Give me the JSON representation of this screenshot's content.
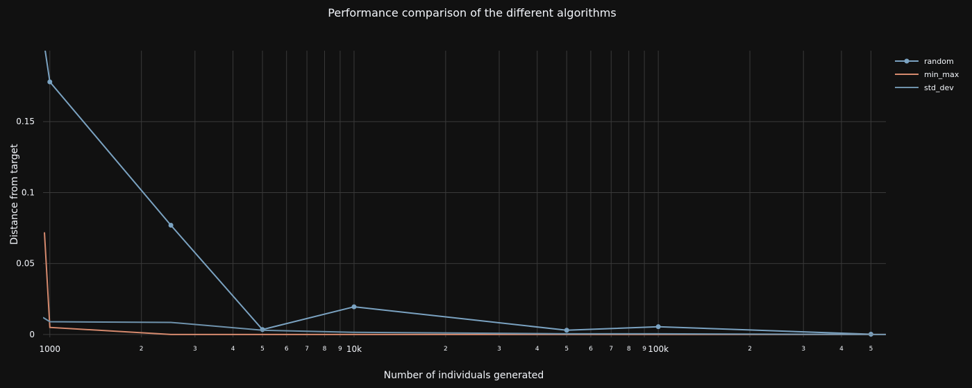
{
  "chart_data": {
    "type": "line",
    "title": "Performance comparison of the different algorithms",
    "xlabel": "Number of individuals generated",
    "ylabel": "Distance from target",
    "x_scale": "log",
    "xlim": [
      950,
      560000
    ],
    "ylim": [
      -0.002,
      0.2
    ],
    "grid": true,
    "legend_position": "top-right",
    "x_tick_labels": {
      "major": [
        {
          "value": 1000,
          "label": "1000"
        },
        {
          "value": 10000,
          "label": "10k"
        },
        {
          "value": 100000,
          "label": "100k"
        }
      ],
      "minor": [
        {
          "value": 2000,
          "label": "2"
        },
        {
          "value": 3000,
          "label": "3"
        },
        {
          "value": 4000,
          "label": "4"
        },
        {
          "value": 5000,
          "label": "5"
        },
        {
          "value": 6000,
          "label": "6"
        },
        {
          "value": 7000,
          "label": "7"
        },
        {
          "value": 8000,
          "label": "8"
        },
        {
          "value": 9000,
          "label": "9"
        },
        {
          "value": 20000,
          "label": "2"
        },
        {
          "value": 30000,
          "label": "3"
        },
        {
          "value": 40000,
          "label": "4"
        },
        {
          "value": 50000,
          "label": "5"
        },
        {
          "value": 60000,
          "label": "6"
        },
        {
          "value": 70000,
          "label": "7"
        },
        {
          "value": 80000,
          "label": "8"
        },
        {
          "value": 90000,
          "label": "9"
        },
        {
          "value": 200000,
          "label": "2"
        },
        {
          "value": 300000,
          "label": "3"
        },
        {
          "value": 400000,
          "label": "4"
        },
        {
          "value": 500000,
          "label": "5"
        }
      ]
    },
    "y_ticks": [
      {
        "value": 0,
        "label": "0"
      },
      {
        "value": 0.05,
        "label": "0.05"
      },
      {
        "value": 0.1,
        "label": "0.1"
      },
      {
        "value": 0.15,
        "label": "0.15"
      }
    ],
    "series": [
      {
        "name": "random",
        "color": "#7ba3c2",
        "markers": true,
        "points": [
          [
            920,
            0.23
          ],
          [
            1000,
            0.178
          ],
          [
            2500,
            0.077
          ],
          [
            5000,
            0.0035
          ],
          [
            10000,
            0.0195
          ],
          [
            50000,
            0.003
          ],
          [
            100000,
            0.0055
          ],
          [
            500000,
            0.0002
          ]
        ]
      },
      {
        "name": "min_max",
        "color": "#d68a6e",
        "markers": false,
        "points": [
          [
            960,
            0.072
          ],
          [
            1000,
            0.005
          ],
          [
            2500,
            0.0
          ],
          [
            5000,
            0.0
          ],
          [
            10000,
            0.0
          ],
          [
            50000,
            0.0
          ],
          [
            100000,
            0.0
          ],
          [
            560000,
            0.0
          ]
        ]
      },
      {
        "name": "std_dev",
        "color": "#6f93ad",
        "markers": false,
        "points": [
          [
            950,
            0.012
          ],
          [
            1000,
            0.009
          ],
          [
            2500,
            0.0085
          ],
          [
            5000,
            0.003
          ],
          [
            10000,
            0.0015
          ],
          [
            50000,
            0.0005
          ],
          [
            100000,
            0.0005
          ],
          [
            560000,
            0.0
          ]
        ]
      }
    ]
  }
}
